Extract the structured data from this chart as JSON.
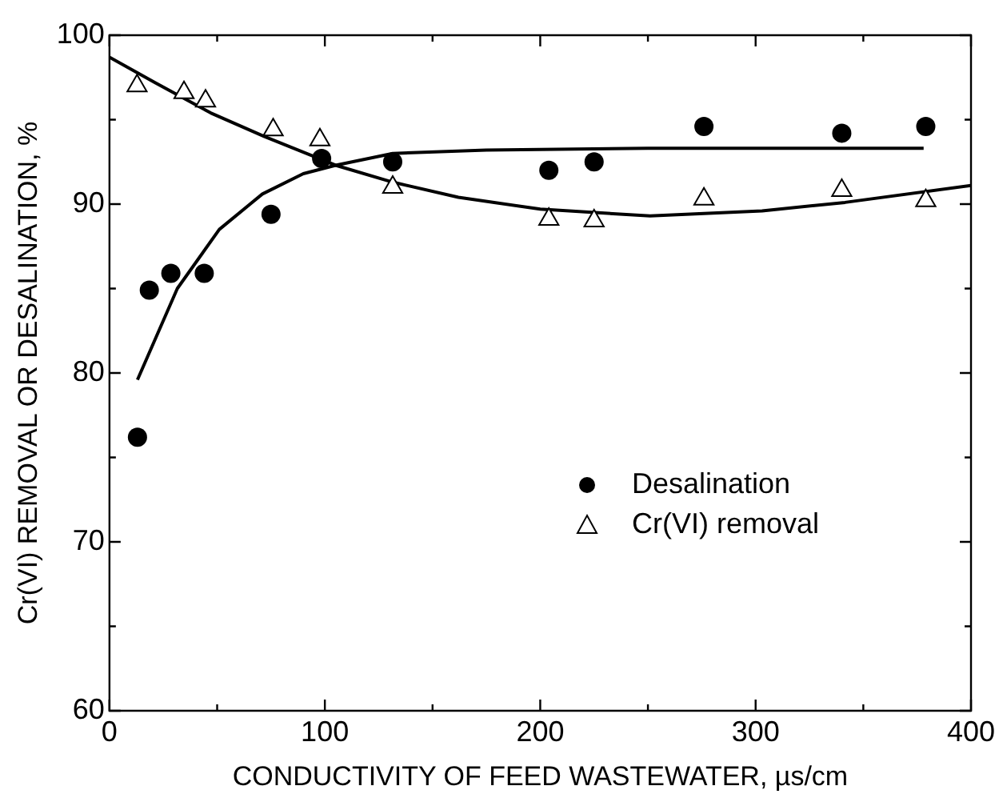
{
  "chart_data": {
    "type": "scatter",
    "xlabel": "CONDUCTIVITY OF FEED WASTEWATER, µs/cm",
    "ylabel": "Cr(VI) REMOVAL OR DESALINATION, %",
    "xlim": [
      0,
      400
    ],
    "xticks": [
      0,
      {
        "value": 50,
        "label": null
      },
      100,
      {
        "value": 150,
        "label": null
      },
      200,
      {
        "value": 250,
        "label": null
      },
      300,
      {
        "value": 350,
        "label": null
      },
      400
    ],
    "ylim": [
      60,
      100
    ],
    "yticks": [
      60,
      {
        "value": 65,
        "label": null
      },
      70,
      {
        "value": 75,
        "label": null
      },
      80,
      {
        "value": 85,
        "label": null
      },
      90,
      {
        "value": 95,
        "label": null
      },
      100
    ],
    "grid": false,
    "legend": "right",
    "series": [
      {
        "name": "Desalination",
        "color": "#000000",
        "marker": "circle",
        "x": [
          13,
          18.5,
          28.5,
          44,
          75,
          98.5,
          131.5,
          204,
          225,
          276,
          340,
          379
        ],
        "values": [
          76.2,
          84.9,
          85.9,
          85.9,
          89.4,
          92.7,
          92.5,
          92.0,
          92.5,
          94.6,
          94.2,
          94.6
        ]
      },
      {
        "name": "Cr(VI) removal",
        "color": "#000000",
        "marker": "triangle",
        "x": [
          12.8,
          34.6,
          44.6,
          76,
          97.7,
          131.5,
          204,
          225,
          276,
          340,
          379
        ],
        "values": [
          97.0,
          96.6,
          96.1,
          94.4,
          93.8,
          91.0,
          89.1,
          89.0,
          90.3,
          90.8,
          90.2
        ]
      },
      {
        "type": "line",
        "color": "#000000",
        "marker": "none",
        "x": [
          13,
          31.5,
          51,
          71,
          90,
          105,
          131.5,
          175,
          250,
          378
        ],
        "values": [
          79.6,
          85.0,
          88.5,
          90.6,
          91.8,
          92.3,
          93.0,
          93.2,
          93.3,
          93.3
        ]
      },
      {
        "type": "line",
        "color": "#000000",
        "marker": "none",
        "x": [
          0,
          21,
          47,
          72,
          105,
          131.5,
          162,
          200,
          251,
          303,
          341.5,
          400
        ],
        "values": [
          98.7,
          97.2,
          95.4,
          94.0,
          92.3,
          91.3,
          90.4,
          89.7,
          89.3,
          89.6,
          90.1,
          91.1
        ]
      }
    ]
  }
}
